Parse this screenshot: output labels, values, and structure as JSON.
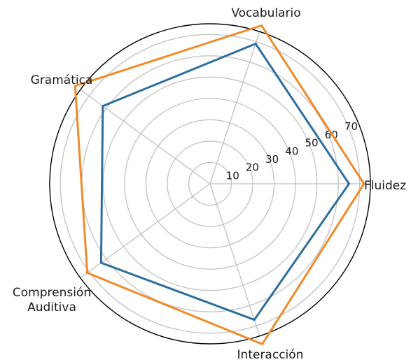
{
  "chart_data": {
    "type": "radar",
    "categories": [
      "Fluidez",
      "Vocabulario",
      "Gramática",
      "Comprensión\nAuditiva",
      "Interacción"
    ],
    "radial_ticks": [
      10,
      20,
      30,
      40,
      50,
      60,
      70
    ],
    "rlim": [
      0,
      75
    ],
    "grid": true,
    "series": [
      {
        "values": [
          65,
          69,
          62,
          63,
          67
        ],
        "color": "#2e6f9e"
      },
      {
        "values": [
          72,
          78,
          78,
          71,
          79
        ],
        "color": "#f08b2b"
      }
    ]
  }
}
